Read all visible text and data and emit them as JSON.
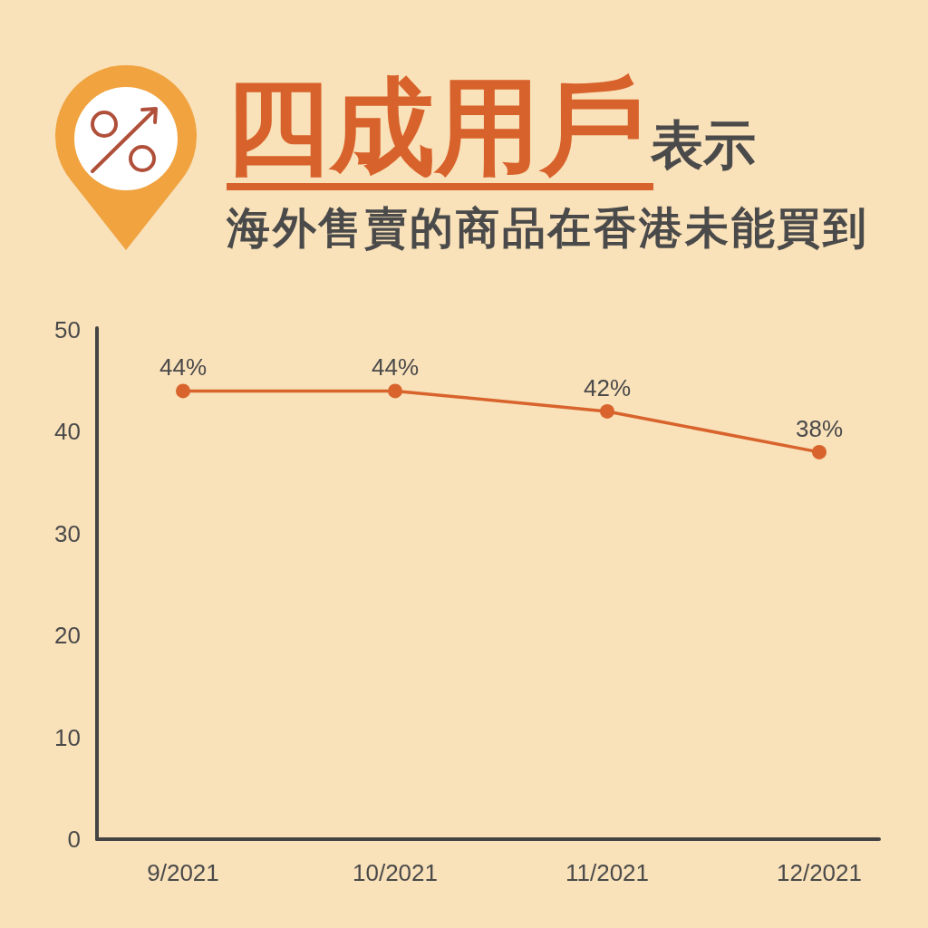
{
  "chart_data": {
    "type": "line",
    "title": "四成用戶表示",
    "subtitle": "海外售賣的商品在香港未能買到",
    "categories": [
      "9/2021",
      "10/2021",
      "11/2021",
      "12/2021"
    ],
    "values": [
      44,
      44,
      42,
      38
    ],
    "value_labels": [
      "44%",
      "44%",
      "42%",
      "38%"
    ],
    "color": "#d8632c",
    "ylim": [
      0,
      50
    ],
    "yticks": [
      0,
      10,
      20,
      30,
      40,
      50
    ],
    "marker": "circle",
    "line_style": "solid"
  }
}
